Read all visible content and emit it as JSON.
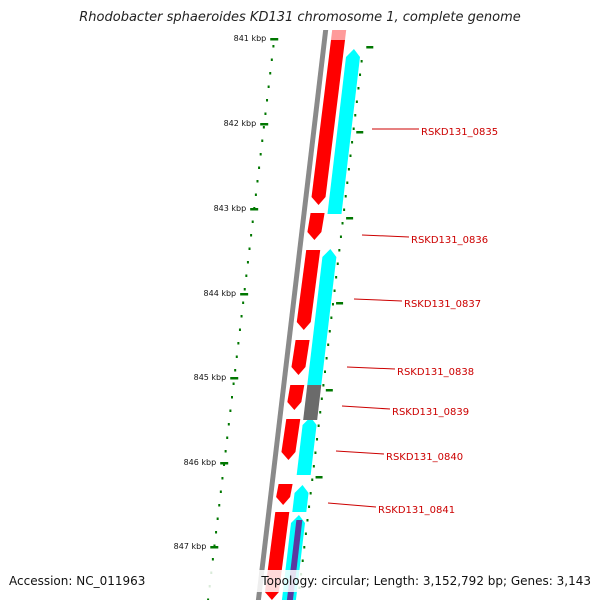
{
  "title": "Rhodobacter sphaeroides KD131 chromosome 1, complete genome",
  "footer": {
    "accession": "Accession: NC_011963",
    "summary": "Topology: circular; Length: 3,152,792 bp; Genes: 3,143"
  },
  "colors": {
    "forward_cds": "#ff0000",
    "reverse_cds": "#00ffff",
    "other_feature": "#6b6b6b",
    "rna_feature": "#5b3aa0",
    "backbone": "#8a8a8a",
    "tick": "#007700",
    "label": "#cc0000"
  },
  "scale": {
    "ticks": [
      "841 kbp",
      "842 kbp",
      "843 kbp",
      "844 kbp",
      "845 kbp",
      "846 kbp",
      "847 kbp"
    ]
  },
  "genes": [
    {
      "label": "RSKD131_0835"
    },
    {
      "label": "RSKD131_0836"
    },
    {
      "label": "RSKD131_0837"
    },
    {
      "label": "RSKD131_0838"
    },
    {
      "label": "RSKD131_0839"
    },
    {
      "label": "RSKD131_0840"
    },
    {
      "label": "RSKD131_0841"
    }
  ]
}
